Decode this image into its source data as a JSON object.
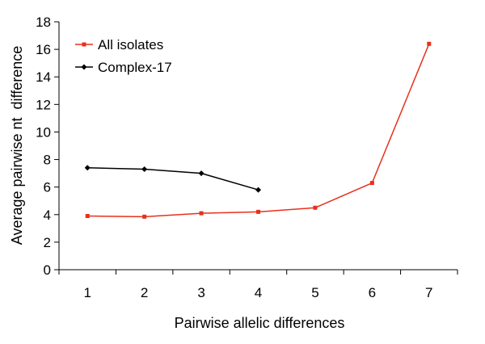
{
  "chart_data": {
    "type": "line",
    "x": [
      1,
      2,
      3,
      4,
      5,
      6,
      7
    ],
    "series": [
      {
        "name": "All isolates",
        "color": "#e8301c",
        "marker": "square",
        "values": [
          3.9,
          3.85,
          4.1,
          4.2,
          4.5,
          6.3,
          16.4
        ]
      },
      {
        "name": "Complex-17",
        "color": "#000000",
        "marker": "diamond",
        "values": [
          7.4,
          7.3,
          7.0,
          5.8,
          null,
          null,
          null
        ]
      }
    ],
    "xlabel": "Pairwise allelic differences",
    "ylabel": "Average pairwise nt  difference",
    "xlim": [
      0.5,
      7.5
    ],
    "ylim": [
      0,
      18
    ],
    "xticks": [
      "1",
      "2",
      "3",
      "4",
      "5",
      "6",
      "7"
    ],
    "yticks": [
      "0",
      "2",
      "4",
      "6",
      "8",
      "10",
      "12",
      "14",
      "16",
      "18"
    ],
    "grid": false,
    "legend": "top-left"
  }
}
